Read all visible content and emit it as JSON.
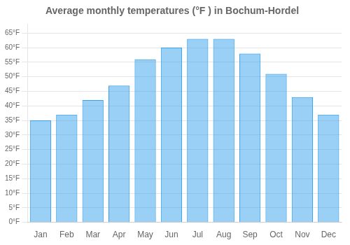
{
  "chart_data": {
    "type": "bar",
    "title": "Average monthly temperatures (°F ) in Bochum-Hordel",
    "categories": [
      "Jan",
      "Feb",
      "Mar",
      "Apr",
      "May",
      "Jun",
      "Jul",
      "Aug",
      "Sep",
      "Oct",
      "Nov",
      "Dec"
    ],
    "values": [
      35,
      37,
      42,
      47,
      56,
      60,
      63,
      63,
      58,
      51,
      43,
      37
    ],
    "ylim": [
      0,
      68
    ],
    "yticks": [
      {
        "value": 0,
        "label": "0°F"
      },
      {
        "value": 5,
        "label": "5°F"
      },
      {
        "value": 10,
        "label": "10°F"
      },
      {
        "value": 15,
        "label": "15°F"
      },
      {
        "value": 20,
        "label": "20°F"
      },
      {
        "value": 25,
        "label": "25°F"
      },
      {
        "value": 30,
        "label": "30°F"
      },
      {
        "value": 35,
        "label": "35°F"
      },
      {
        "value": 40,
        "label": "40°F"
      },
      {
        "value": 45,
        "label": "45°F"
      },
      {
        "value": 50,
        "label": "50°F"
      },
      {
        "value": 55,
        "label": "55°F"
      },
      {
        "value": 60,
        "label": "60°F"
      },
      {
        "value": 65,
        "label": "65°F"
      }
    ],
    "grid": true
  }
}
